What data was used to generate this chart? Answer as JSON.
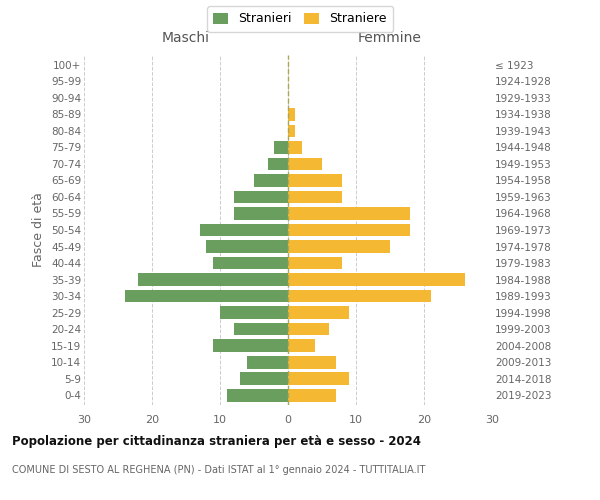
{
  "age_groups": [
    "0-4",
    "5-9",
    "10-14",
    "15-19",
    "20-24",
    "25-29",
    "30-34",
    "35-39",
    "40-44",
    "45-49",
    "50-54",
    "55-59",
    "60-64",
    "65-69",
    "70-74",
    "75-79",
    "80-84",
    "85-89",
    "90-94",
    "95-99",
    "100+"
  ],
  "birth_years": [
    "2019-2023",
    "2014-2018",
    "2009-2013",
    "2004-2008",
    "1999-2003",
    "1994-1998",
    "1989-1993",
    "1984-1988",
    "1979-1983",
    "1974-1978",
    "1969-1973",
    "1964-1968",
    "1959-1963",
    "1954-1958",
    "1949-1953",
    "1944-1948",
    "1939-1943",
    "1934-1938",
    "1929-1933",
    "1924-1928",
    "≤ 1923"
  ],
  "maschi": [
    9,
    7,
    6,
    11,
    8,
    10,
    24,
    22,
    11,
    12,
    13,
    8,
    8,
    5,
    3,
    2,
    0,
    0,
    0,
    0,
    0
  ],
  "femmine": [
    7,
    9,
    7,
    4,
    6,
    9,
    21,
    26,
    8,
    15,
    18,
    18,
    8,
    8,
    5,
    2,
    1,
    1,
    0,
    0,
    0
  ],
  "color_maschi": "#6a9e5e",
  "color_femmine": "#f5b833",
  "title": "Popolazione per cittadinanza straniera per età e sesso - 2024",
  "subtitle": "COMUNE DI SESTO AL REGHENA (PN) - Dati ISTAT al 1° gennaio 2024 - TUTTITALIA.IT",
  "xlabel_left": "Maschi",
  "xlabel_right": "Femmine",
  "ylabel_left": "Fasce di età",
  "legend_maschi": "Stranieri",
  "legend_femmine": "Straniere",
  "xlim": 30,
  "background_color": "#ffffff",
  "grid_color": "#cccccc"
}
